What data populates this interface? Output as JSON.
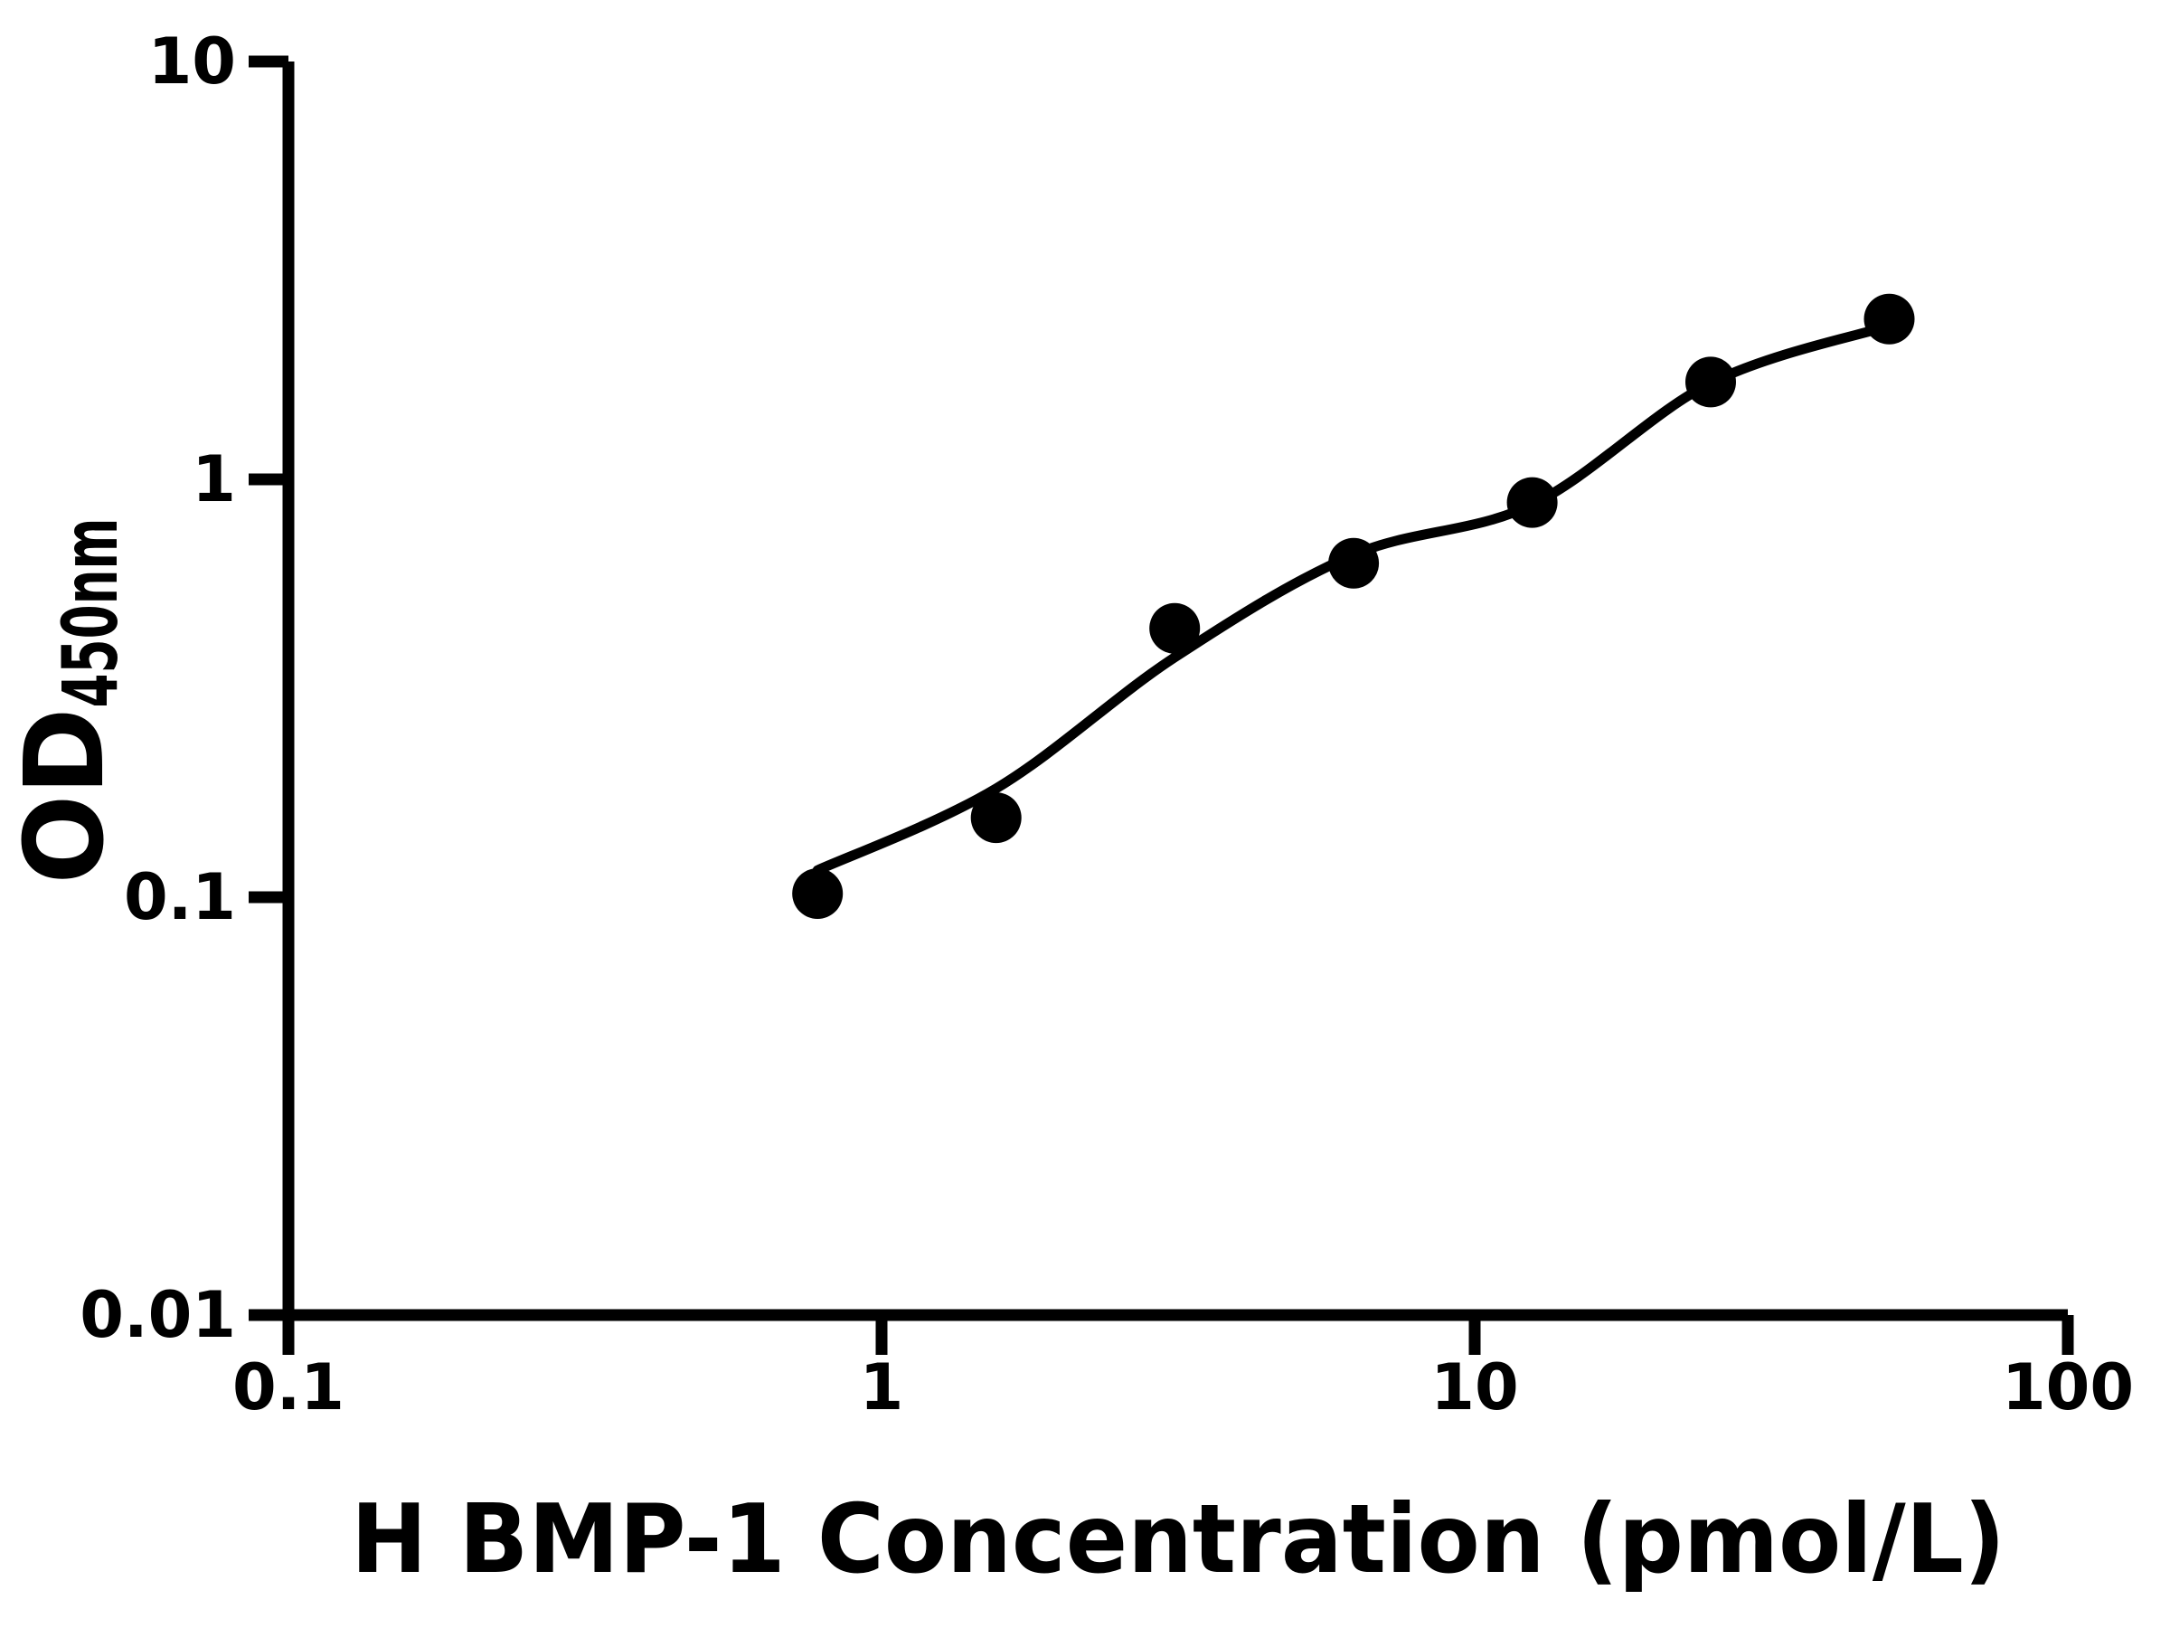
{
  "figure": {
    "background_color": "#ffffff",
    "ink_color": "#000000"
  },
  "chart_data": {
    "type": "scatter",
    "title": "",
    "xlabel": "H BMP-1 Concentration (pmol/L)",
    "ylabel_main": "OD",
    "ylabel_sub": "450nm",
    "x_scale": "log",
    "y_scale": "log",
    "xlim": [
      0.1,
      100
    ],
    "ylim": [
      0.01,
      10
    ],
    "x_ticks": [
      0.1,
      1,
      10,
      100
    ],
    "x_tick_labels": [
      "0.1",
      "1",
      "10",
      "100"
    ],
    "y_ticks": [
      0.01,
      0.1,
      1,
      10
    ],
    "y_tick_labels": [
      "0.01",
      "0.1",
      "1",
      "10"
    ],
    "grid": false,
    "legend_position": "none",
    "series": [
      {
        "name": "standard-points",
        "marker": "filled-circle",
        "color": "#000000",
        "x": [
          0.78,
          1.56,
          3.12,
          6.25,
          12.5,
          25,
          50
        ],
        "y": [
          0.102,
          0.155,
          0.44,
          0.63,
          0.88,
          1.71,
          2.42
        ]
      }
    ],
    "fit_curve": {
      "name": "four-parameter-logistic-fit",
      "color": "#000000",
      "points": [
        [
          0.78,
          0.116
        ],
        [
          1.56,
          0.182
        ],
        [
          3.12,
          0.375
        ],
        [
          6.25,
          0.66
        ],
        [
          12.5,
          0.87
        ],
        [
          25,
          1.7
        ],
        [
          50,
          2.33
        ]
      ]
    }
  }
}
